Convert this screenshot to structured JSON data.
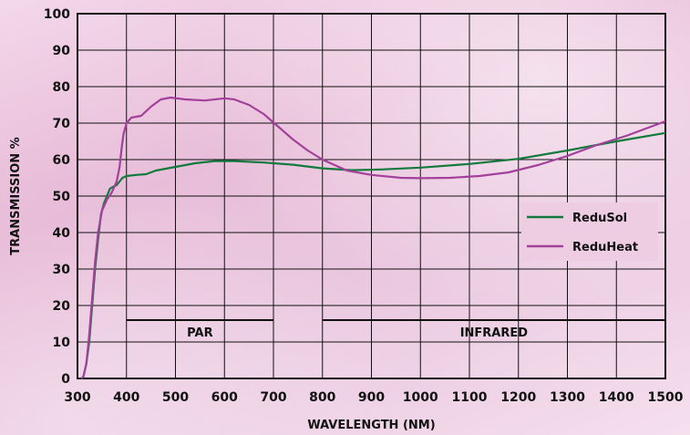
{
  "chart_data": {
    "type": "line",
    "xlabel": "WAVELENGTH (NM)",
    "ylabel": "TRANSMISSION %",
    "xlim": [
      300,
      1500
    ],
    "ylim": [
      0,
      100
    ],
    "x_ticks": [
      300,
      400,
      500,
      600,
      700,
      800,
      900,
      1000,
      1100,
      1200,
      1300,
      1400,
      1500
    ],
    "y_ticks": [
      0,
      10,
      20,
      30,
      40,
      50,
      60,
      70,
      80,
      90,
      100
    ],
    "x_gridlines": [
      300,
      400,
      500,
      600,
      700,
      800,
      900,
      1000,
      1100,
      1200,
      1300,
      1400,
      1500
    ],
    "y_gridlines": [
      0,
      10,
      20,
      30,
      40,
      50,
      60,
      70,
      80,
      90,
      100
    ],
    "grid": true,
    "legend_position": "right",
    "series": [
      {
        "name": "ReduSol",
        "color": "#117a3c",
        "points": [
          [
            308,
            0
          ],
          [
            312,
            0.5
          ],
          [
            318,
            4
          ],
          [
            324,
            10
          ],
          [
            330,
            20
          ],
          [
            336,
            30
          ],
          [
            342,
            38
          ],
          [
            348,
            45
          ],
          [
            354,
            48
          ],
          [
            360,
            50
          ],
          [
            366,
            52
          ],
          [
            372,
            52.5
          ],
          [
            380,
            53
          ],
          [
            386,
            54
          ],
          [
            392,
            55
          ],
          [
            400,
            55.5
          ],
          [
            420,
            55.8
          ],
          [
            440,
            56
          ],
          [
            460,
            57
          ],
          [
            480,
            57.5
          ],
          [
            500,
            58
          ],
          [
            540,
            59
          ],
          [
            580,
            59.6
          ],
          [
            620,
            59.6
          ],
          [
            680,
            59.2
          ],
          [
            740,
            58.6
          ],
          [
            800,
            57.6
          ],
          [
            860,
            57.1
          ],
          [
            920,
            57.3
          ],
          [
            1000,
            57.8
          ],
          [
            1100,
            58.8
          ],
          [
            1200,
            60.2
          ],
          [
            1300,
            62.5
          ],
          [
            1400,
            65
          ],
          [
            1500,
            67.3
          ]
        ]
      },
      {
        "name": "ReduHeat",
        "color": "#a2409b",
        "points": [
          [
            308,
            0
          ],
          [
            312,
            0.5
          ],
          [
            318,
            4
          ],
          [
            324,
            12
          ],
          [
            330,
            22
          ],
          [
            336,
            32
          ],
          [
            342,
            40
          ],
          [
            350,
            46
          ],
          [
            360,
            49
          ],
          [
            370,
            51
          ],
          [
            380,
            54
          ],
          [
            386,
            58
          ],
          [
            390,
            63
          ],
          [
            394,
            67
          ],
          [
            400,
            70
          ],
          [
            410,
            71.5
          ],
          [
            430,
            72
          ],
          [
            450,
            74.5
          ],
          [
            470,
            76.5
          ],
          [
            490,
            77
          ],
          [
            520,
            76.5
          ],
          [
            560,
            76.2
          ],
          [
            600,
            76.8
          ],
          [
            620,
            76.5
          ],
          [
            650,
            75
          ],
          [
            680,
            72.5
          ],
          [
            710,
            69
          ],
          [
            740,
            65.5
          ],
          [
            770,
            62.5
          ],
          [
            800,
            60
          ],
          [
            850,
            57
          ],
          [
            900,
            55.8
          ],
          [
            960,
            55
          ],
          [
            1000,
            54.9
          ],
          [
            1060,
            55
          ],
          [
            1120,
            55.5
          ],
          [
            1180,
            56.5
          ],
          [
            1240,
            58.5
          ],
          [
            1300,
            61
          ],
          [
            1360,
            64
          ],
          [
            1420,
            66.5
          ],
          [
            1480,
            69.5
          ],
          [
            1500,
            70.5
          ]
        ]
      }
    ],
    "bands": [
      {
        "label": "PAR",
        "start": 400,
        "end": 700,
        "y": 16
      },
      {
        "label": "INFRARED",
        "start": 800,
        "end": 1500,
        "y": 16
      }
    ]
  }
}
